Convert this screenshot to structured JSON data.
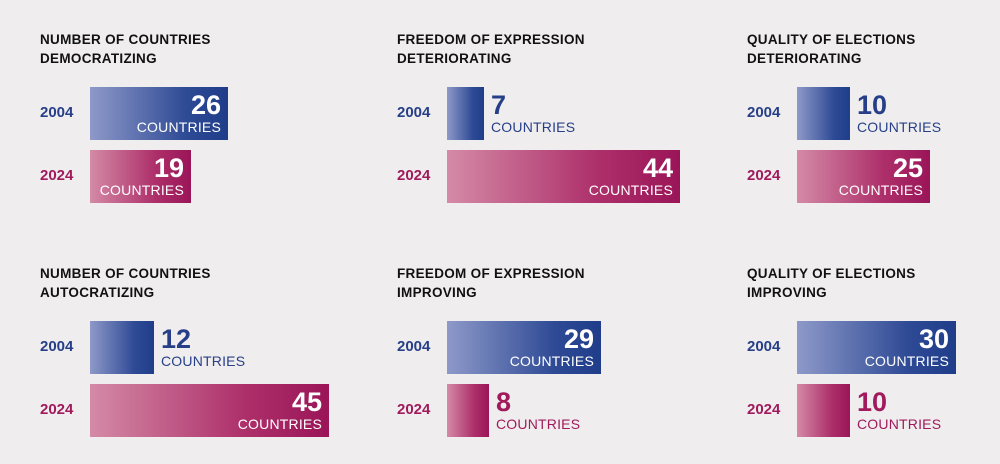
{
  "unit_label": "COUNTRIES",
  "colors": {
    "y2004": "#273f88",
    "y2024": "#a01a5c",
    "background": "#efedee"
  },
  "chart_data": [
    {
      "type": "bar",
      "title_line1": "NUMBER OF COUNTRIES",
      "title_line2": "DEMOCRATIZING",
      "categories": [
        "2004",
        "2024"
      ],
      "values": [
        26,
        19
      ]
    },
    {
      "type": "bar",
      "title_line1": "FREEDOM OF EXPRESSION",
      "title_line2": "DETERIORATING",
      "categories": [
        "2004",
        "2024"
      ],
      "values": [
        7,
        44
      ]
    },
    {
      "type": "bar",
      "title_line1": "QUALITY OF ELECTIONS",
      "title_line2": "DETERIORATING",
      "categories": [
        "2004",
        "2024"
      ],
      "values": [
        10,
        25
      ]
    },
    {
      "type": "bar",
      "title_line1": "NUMBER OF COUNTRIES",
      "title_line2": "AUTOCRATIZING",
      "categories": [
        "2004",
        "2024"
      ],
      "values": [
        12,
        45
      ]
    },
    {
      "type": "bar",
      "title_line1": "FREEDOM OF EXPRESSION",
      "title_line2": "IMPROVING",
      "categories": [
        "2004",
        "2024"
      ],
      "values": [
        29,
        8
      ]
    },
    {
      "type": "bar",
      "title_line1": "QUALITY OF ELECTIONS",
      "title_line2": "IMPROVING",
      "categories": [
        "2004",
        "2024"
      ],
      "values": [
        30,
        10
      ]
    }
  ]
}
